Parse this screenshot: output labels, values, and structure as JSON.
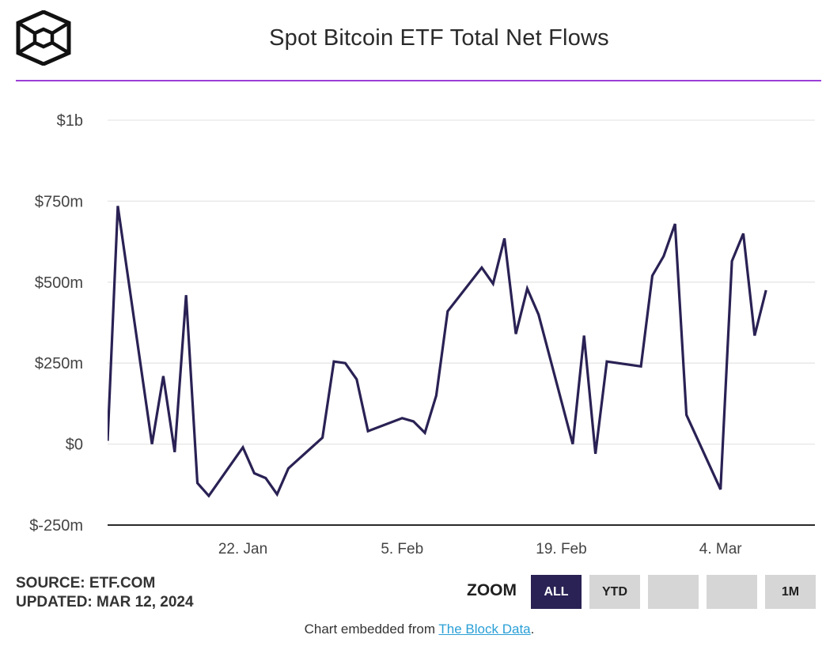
{
  "header": {
    "title": "Spot Bitcoin ETF Total Net Flows"
  },
  "footer": {
    "source_line": "SOURCE: ETF.COM",
    "updated_line": "UPDATED: MAR 12, 2024",
    "zoom_label": "ZOOM",
    "zoom_buttons": [
      "ALL",
      "YTD",
      "",
      "",
      "1M"
    ],
    "active_zoom": "ALL",
    "embed_prefix": "Chart embedded from ",
    "embed_link": "The Block Data",
    "embed_suffix": "."
  },
  "colors": {
    "line": "#2a2154",
    "accent_rule": "#9b3fd6",
    "active_button": "#2a2154",
    "link": "#2a9fd6"
  },
  "icons": {
    "logo": "the-block-cube-logo-icon"
  },
  "chart_data": {
    "type": "line",
    "title": "Spot Bitcoin ETF Total Net Flows",
    "xlabel": "",
    "ylabel": "",
    "x_unit": "day of 2024 (Jan 1 = 0)",
    "xlim": [
      9.1,
      71.3
    ],
    "ylim": [
      -250,
      1000
    ],
    "y_ticks": [
      {
        "value": 1000,
        "label": "$1b"
      },
      {
        "value": 750,
        "label": "$750m"
      },
      {
        "value": 500,
        "label": "$500m"
      },
      {
        "value": 250,
        "label": "$250m"
      },
      {
        "value": 0,
        "label": "$0"
      },
      {
        "value": -250,
        "label": "$-250m"
      }
    ],
    "x_ticks": [
      {
        "value": 21,
        "label": "22. Jan"
      },
      {
        "value": 35,
        "label": "5. Feb"
      },
      {
        "value": 49,
        "label": "19. Feb"
      },
      {
        "value": 63,
        "label": "4. Mar"
      }
    ],
    "grid": true,
    "series": [
      {
        "name": "Total Net Flows ($m)",
        "x": [
          9.1,
          10,
          13,
          14,
          15,
          16,
          17,
          18,
          21,
          22,
          23,
          24,
          25,
          28,
          29,
          30,
          31,
          32,
          35,
          36,
          37,
          38,
          39,
          42,
          43,
          44,
          45,
          46,
          47,
          50,
          51,
          52,
          53,
          56,
          57,
          58,
          59,
          60,
          63,
          64,
          65,
          66,
          67
        ],
        "values": [
          10,
          735,
          0,
          210,
          -25,
          460,
          -120,
          -160,
          -10,
          -90,
          -105,
          -155,
          -75,
          20,
          255,
          250,
          200,
          40,
          80,
          70,
          35,
          150,
          410,
          545,
          495,
          635,
          340,
          480,
          400,
          0,
          335,
          -30,
          255,
          240,
          520,
          580,
          680,
          90,
          -140,
          565,
          650,
          335,
          475
        ]
      }
    ]
  }
}
